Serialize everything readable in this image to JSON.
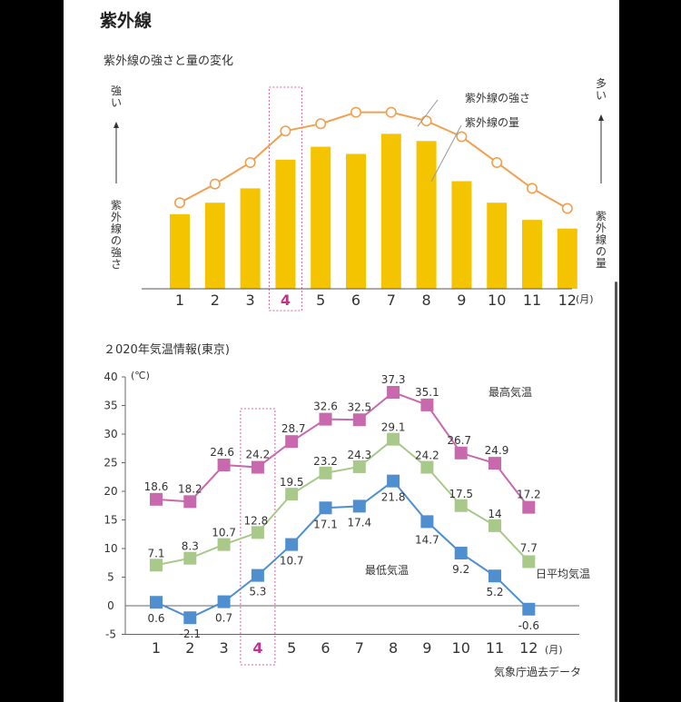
{
  "page": {
    "title": "紫外線"
  },
  "chart_data": [
    {
      "type": "bar",
      "title": "紫外線の強さと量の変化",
      "categories": [
        "1",
        "2",
        "3",
        "4",
        "5",
        "6",
        "7",
        "8",
        "9",
        "10",
        "11",
        "12"
      ],
      "x_unit": "(月)",
      "highlight_category": "4",
      "left_axis_top": "強い",
      "left_axis_bottom": "紫外線の強さ",
      "right_axis_top": "多い",
      "right_axis_bottom": "紫外線の量",
      "ylim": [
        0,
        100
      ],
      "series": [
        {
          "name": "紫外線の量",
          "type": "bar",
          "color": "#f5c400",
          "values": [
            52,
            60,
            70,
            90,
            99,
            94,
            108,
            103,
            75,
            60,
            48,
            42
          ]
        },
        {
          "name": "紫外線の強さ",
          "type": "line",
          "color": "#f0a050",
          "values": [
            60,
            73,
            88,
            110,
            115,
            123,
            123,
            117,
            106,
            88,
            70,
            56
          ]
        }
      ]
    },
    {
      "type": "line",
      "title": "２020年気温情報(東京)",
      "categories": [
        "1",
        "2",
        "3",
        "4",
        "5",
        "6",
        "7",
        "8",
        "9",
        "10",
        "11",
        "12"
      ],
      "x_unit": "(月)",
      "y_unit": "(℃)",
      "highlight_category": "4",
      "ylim": [
        -5,
        40
      ],
      "yticks": [
        -5,
        0,
        5,
        10,
        15,
        20,
        25,
        30,
        35,
        40
      ],
      "source": "気象庁過去データ",
      "series": [
        {
          "name": "最高気温",
          "color": "#c869ad",
          "values": [
            18.6,
            18.2,
            24.6,
            24.2,
            28.7,
            32.6,
            32.5,
            37.3,
            35.1,
            26.7,
            24.9,
            17.2
          ]
        },
        {
          "name": "日平均気温",
          "color": "#a8c98a",
          "values": [
            7.1,
            8.3,
            10.7,
            12.8,
            19.5,
            23.2,
            24.3,
            29.1,
            24.2,
            17.5,
            14,
            7.7
          ]
        },
        {
          "name": "最低気温",
          "color": "#4f8fd0",
          "values": [
            0.6,
            -2.1,
            0.7,
            5.3,
            10.7,
            17.1,
            17.4,
            21.8,
            14.7,
            9.2,
            5.2,
            -0.6
          ]
        }
      ]
    }
  ]
}
